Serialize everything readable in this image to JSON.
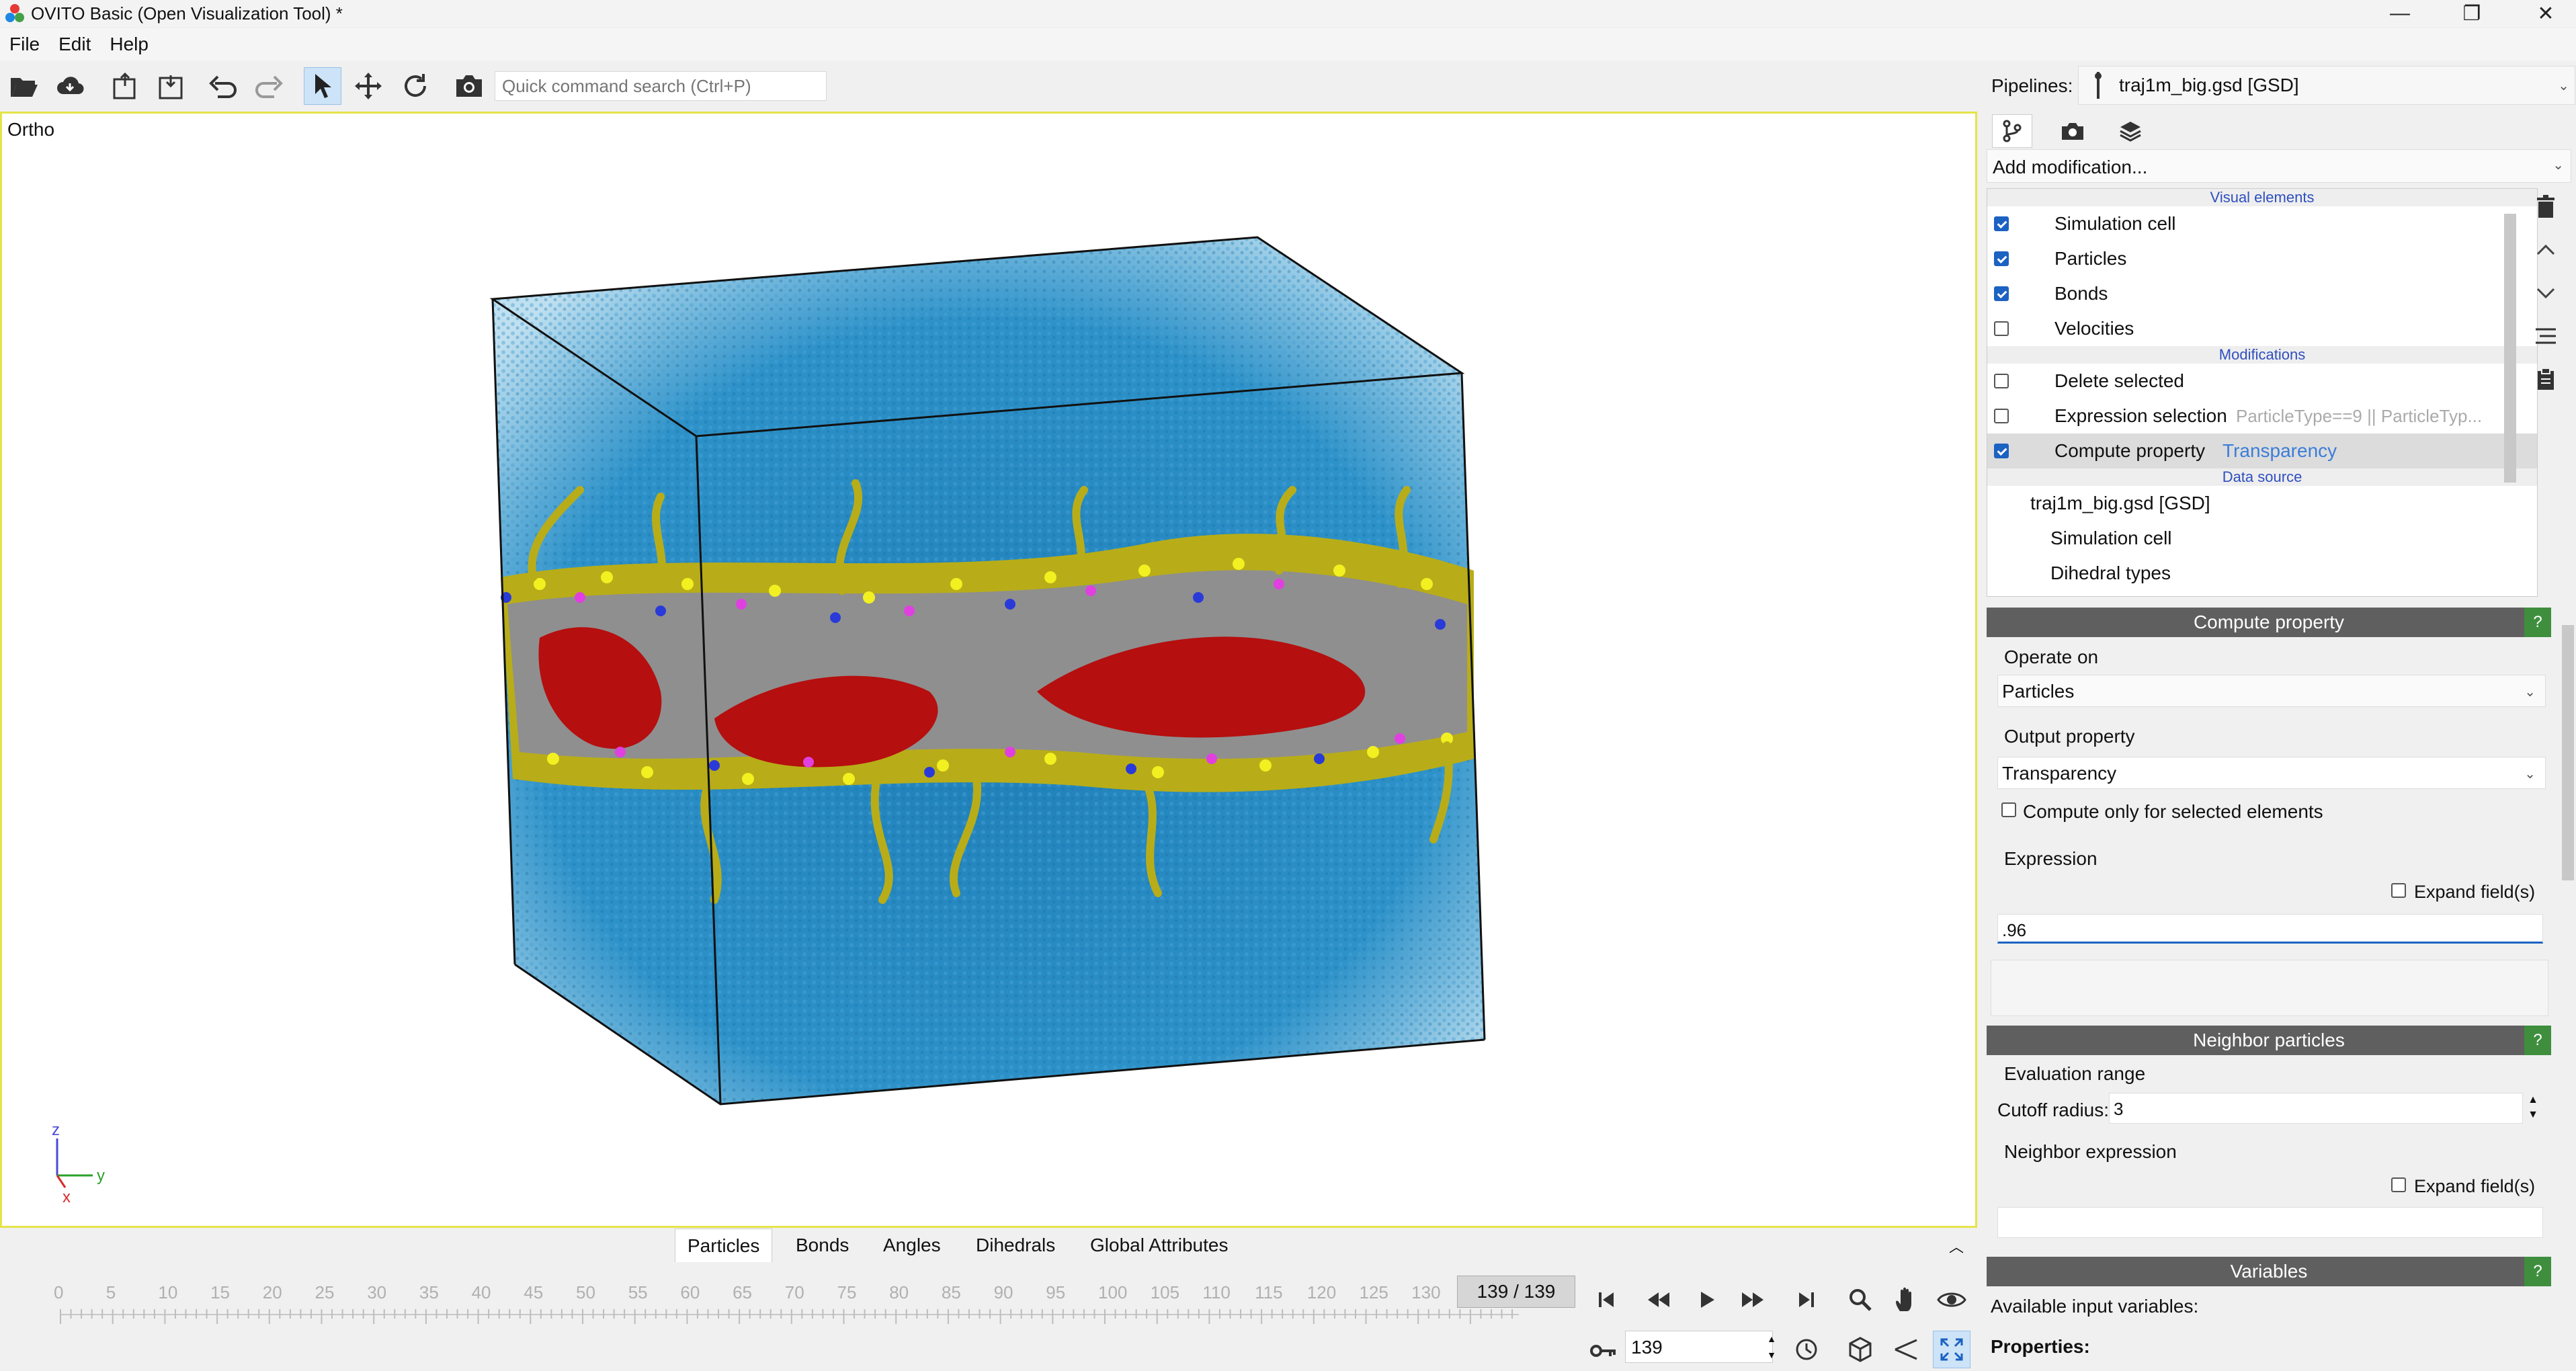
{
  "window": {
    "title": "OVITO Basic (Open Visualization Tool) *",
    "minimize": "—",
    "maximize": "❐",
    "close": "✕"
  },
  "menu": [
    "File",
    "Edit",
    "Help"
  ],
  "toolbar": {
    "search_placeholder": "Quick command search (Ctrl+P)"
  },
  "pipelines": {
    "label": "Pipelines:",
    "selected": "traj1m_big.gsd [GSD]"
  },
  "viewport": {
    "label": "Ortho",
    "axis_z": "z",
    "axis_y": "y",
    "axis_x": "x"
  },
  "add_modification": "Add modification...",
  "pipeline_list": {
    "visual_header": "Visual elements",
    "visual": [
      {
        "label": "Simulation cell",
        "checked": true
      },
      {
        "label": "Particles",
        "checked": true
      },
      {
        "label": "Bonds",
        "checked": true
      },
      {
        "label": "Velocities",
        "checked": false
      }
    ],
    "mod_header": "Modifications",
    "mods": [
      {
        "label": "Delete selected",
        "checked": false,
        "note": ""
      },
      {
        "label": "Expression selection",
        "checked": false,
        "note": "ParticleType==9 || ParticleTyp..."
      },
      {
        "label": "Compute property",
        "checked": true,
        "note": "Transparency"
      }
    ],
    "source_header": "Data source",
    "source": [
      "traj1m_big.gsd [GSD]",
      "Simulation cell",
      "Dihedral types"
    ]
  },
  "compute_property": {
    "title": "Compute property",
    "help": "?",
    "operate_on_label": "Operate on",
    "operate_on": "Particles",
    "output_label": "Output property",
    "output": "Transparency",
    "only_selected": "Compute only for selected elements",
    "expression_label": "Expression",
    "expand": "Expand field(s)",
    "expression": ".96"
  },
  "neighbor": {
    "title": "Neighbor particles",
    "help": "?",
    "eval_range": "Evaluation range",
    "cutoff_label": "Cutoff radius:",
    "cutoff": "3",
    "neighbor_expr": "Neighbor expression",
    "expand": "Expand field(s)"
  },
  "variables": {
    "title": "Variables",
    "help": "?",
    "available": "Available input variables:",
    "properties": "Properties:"
  },
  "bottom_tabs": [
    "Particles",
    "Bonds",
    "Angles",
    "Dihedrals",
    "Global Attributes"
  ],
  "timeline": {
    "ticks": [
      "0",
      "5",
      "10",
      "15",
      "20",
      "25",
      "30",
      "35",
      "40",
      "45",
      "50",
      "55",
      "60",
      "65",
      "70",
      "75",
      "80",
      "85",
      "90",
      "95",
      "100",
      "105",
      "110",
      "115",
      "120",
      "125",
      "130"
    ],
    "frame": "139 / 139"
  },
  "animation": {
    "frame_value": "139"
  },
  "colors": {
    "viewport_border": "#e4e44a",
    "water": "#2a8cc4",
    "lipid_head": "#c9c020",
    "lipid_tail": "#9a9a9a",
    "core": "#c01010",
    "group_header": "#5f5f5f",
    "help": "#3e8e3e"
  }
}
